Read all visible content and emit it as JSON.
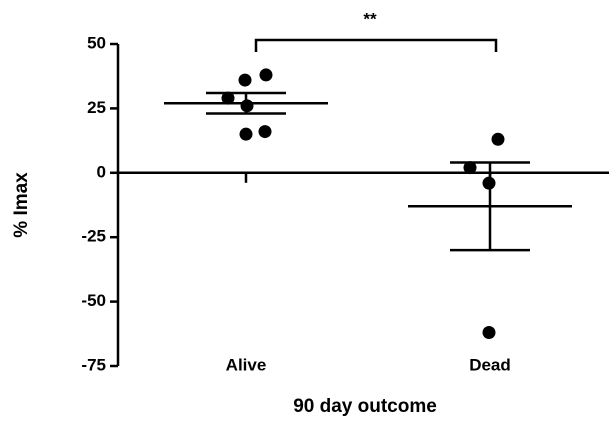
{
  "chart_data": {
    "type": "dot",
    "xlabel": "90 day outcome",
    "ylabel": "% Imax",
    "categories": [
      "Alive",
      "Dead"
    ],
    "groups": [
      {
        "values": [
          38,
          36,
          29,
          26,
          15,
          16
        ],
        "mean": 27,
        "error": 4
      },
      {
        "values": [
          13,
          2,
          -4,
          -62
        ],
        "mean": -13,
        "error": 17
      }
    ],
    "annotation": "**",
    "ylim": [
      -75,
      50
    ],
    "yticks": [
      -75,
      -50,
      -25,
      0,
      25,
      50
    ],
    "color": "#000000"
  }
}
